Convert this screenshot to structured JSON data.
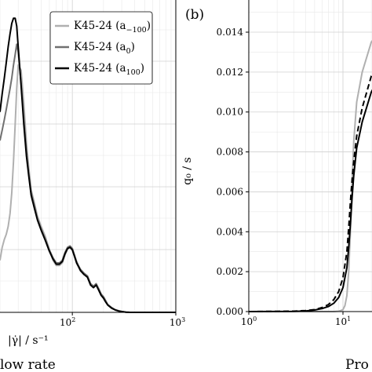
{
  "chart_data": [
    {
      "type": "line",
      "panel_label": "",
      "xscale": "log",
      "xlim": [
        20,
        1000
      ],
      "xticks": [
        {
          "value": 100,
          "base": "10",
          "exp": "2"
        },
        {
          "value": 1000,
          "base": "10",
          "exp": "3"
        }
      ],
      "xlabel": "|γ̇| / s⁻¹",
      "caption_fragment": "low rate",
      "grid": true,
      "legend": {
        "placement": "top-right",
        "entries": [
          {
            "label": "K45-24 (a",
            "sub": "−100",
            "close": ")",
            "color": "#b0b0b0"
          },
          {
            "label": "K45-24 (a",
            "sub": "0",
            "close": ")",
            "color": "#707070"
          },
          {
            "label": "K45-24 (a",
            "sub": "100",
            "close": ")",
            "color": "#000000"
          }
        ]
      },
      "series": [
        {
          "color": "#b0b0b0",
          "x": [
            20,
            21,
            22,
            23,
            24,
            25,
            26,
            27,
            28,
            29,
            30,
            32,
            34,
            36,
            38,
            40,
            43,
            46,
            50,
            55,
            60,
            65,
            70,
            75,
            80,
            85,
            90,
            95,
            100,
            105,
            110,
            115,
            120,
            130,
            140,
            150,
            160,
            170,
            180,
            190,
            200,
            210,
            220,
            240,
            260,
            280,
            300,
            330,
            360,
            400,
            450,
            500,
            600,
            700,
            800,
            1000
          ],
          "y": [
            0.2,
            0.25,
            0.28,
            0.3,
            0.33,
            0.38,
            0.46,
            0.58,
            0.72,
            0.86,
            0.95,
            0.93,
            0.8,
            0.65,
            0.55,
            0.47,
            0.42,
            0.37,
            0.33,
            0.29,
            0.24,
            0.2,
            0.18,
            0.18,
            0.19,
            0.22,
            0.245,
            0.25,
            0.24,
            0.22,
            0.19,
            0.175,
            0.16,
            0.15,
            0.14,
            0.11,
            0.1,
            0.11,
            0.09,
            0.07,
            0.06,
            0.045,
            0.03,
            0.018,
            0.01,
            0.006,
            0.003,
            0.001,
            0.0,
            0.0,
            0.0,
            0.0,
            0.0,
            0.0,
            0.0,
            0.0
          ]
        },
        {
          "color": "#707070",
          "x": [
            20,
            21,
            22,
            23,
            24,
            25,
            26,
            27,
            28,
            29,
            30,
            32,
            34,
            36,
            38,
            40,
            43,
            46,
            50,
            55,
            60,
            65,
            70,
            75,
            80,
            85,
            90,
            95,
            100,
            105,
            110,
            115,
            120,
            130,
            140,
            150,
            160,
            170,
            180,
            190,
            200,
            210,
            220,
            240,
            260,
            280,
            300,
            330,
            360,
            400,
            450,
            500,
            600,
            700,
            800,
            1000
          ],
          "y": [
            0.66,
            0.7,
            0.74,
            0.78,
            0.82,
            0.86,
            0.9,
            0.95,
            0.99,
            1.03,
            1.0,
            0.88,
            0.74,
            0.62,
            0.53,
            0.46,
            0.41,
            0.36,
            0.32,
            0.28,
            0.24,
            0.21,
            0.19,
            0.19,
            0.2,
            0.23,
            0.25,
            0.255,
            0.245,
            0.22,
            0.195,
            0.178,
            0.165,
            0.15,
            0.14,
            0.11,
            0.1,
            0.11,
            0.09,
            0.07,
            0.06,
            0.045,
            0.03,
            0.018,
            0.01,
            0.006,
            0.003,
            0.001,
            0.0,
            0.0,
            0.0,
            0.0,
            0.0,
            0.0,
            0.0,
            0.0
          ]
        },
        {
          "color": "#000000",
          "x": [
            20,
            21,
            22,
            23,
            24,
            25,
            26,
            27,
            28,
            29,
            30,
            32,
            34,
            36,
            38,
            40,
            43,
            46,
            50,
            55,
            60,
            65,
            70,
            75,
            80,
            85,
            90,
            95,
            100,
            105,
            110,
            115,
            120,
            130,
            140,
            150,
            160,
            170,
            180,
            190,
            200,
            210,
            220,
            240,
            260,
            280,
            300,
            330,
            360,
            400,
            450,
            500,
            600,
            700,
            800,
            1000
          ],
          "y": [
            0.77,
            0.84,
            0.9,
            0.96,
            1.02,
            1.07,
            1.11,
            1.13,
            1.13,
            1.1,
            1.02,
            0.87,
            0.72,
            0.6,
            0.52,
            0.45,
            0.4,
            0.355,
            0.315,
            0.275,
            0.235,
            0.205,
            0.185,
            0.185,
            0.195,
            0.225,
            0.245,
            0.25,
            0.24,
            0.215,
            0.19,
            0.175,
            0.16,
            0.145,
            0.135,
            0.105,
            0.095,
            0.105,
            0.085,
            0.065,
            0.055,
            0.04,
            0.028,
            0.016,
            0.009,
            0.005,
            0.003,
            0.001,
            0.0,
            0.0,
            0.0,
            0.0,
            0.0,
            0.0,
            0.0,
            0.0
          ]
        }
      ]
    },
    {
      "type": "line",
      "panel_label": "(b)",
      "xscale": "log",
      "xlim": [
        1,
        30
      ],
      "ylim": [
        0,
        0.0155
      ],
      "xticks": [
        {
          "value": 1,
          "base": "10",
          "exp": "0"
        },
        {
          "value": 10,
          "base": "10",
          "exp": "1"
        }
      ],
      "yticks": [
        {
          "value": 0.0,
          "label": "0.000"
        },
        {
          "value": 0.002,
          "label": "0.002"
        },
        {
          "value": 0.004,
          "label": "0.004"
        },
        {
          "value": 0.006,
          "label": "0.006"
        },
        {
          "value": 0.008,
          "label": "0.008"
        },
        {
          "value": 0.01,
          "label": "0.010"
        },
        {
          "value": 0.012,
          "label": "0.012"
        },
        {
          "value": 0.014,
          "label": "0.014"
        }
      ],
      "ylabel": "q₀ / s",
      "caption_fragment": "Pro",
      "grid": true,
      "series": [
        {
          "color": "#b0b0b0",
          "dash": "solid",
          "x": [
            1,
            5,
            8,
            9,
            9.5,
            10,
            10.5,
            11,
            11.5,
            12,
            12.5,
            13,
            14,
            16,
            20,
            30
          ],
          "y": [
            0,
            0,
            0,
            2e-05,
            5e-05,
            0.0001,
            0.0003,
            0.0008,
            0.002,
            0.004,
            0.0065,
            0.0085,
            0.0105,
            0.012,
            0.0135,
            0.0145
          ]
        },
        {
          "color": "#000000",
          "dash": "solid",
          "x": [
            1,
            3,
            4,
            5,
            6,
            7,
            8,
            9,
            10,
            11,
            11.5,
            12,
            12.5,
            13,
            14,
            16,
            20,
            30
          ],
          "y": [
            0,
            1e-05,
            3e-05,
            8e-05,
            0.00015,
            0.00025,
            0.00042,
            0.0007,
            0.0012,
            0.0022,
            0.0032,
            0.0044,
            0.0057,
            0.0068,
            0.0082,
            0.0095,
            0.011,
            0.0125
          ]
        },
        {
          "color": "#000000",
          "dash": "dashed",
          "x": [
            1,
            3,
            4,
            5,
            6,
            7,
            8,
            9,
            10,
            11,
            11.5,
            12,
            12.5,
            13,
            14,
            16,
            20,
            30
          ],
          "y": [
            0,
            2e-05,
            5e-05,
            0.0001,
            0.0002,
            0.00035,
            0.0006,
            0.001,
            0.0017,
            0.003,
            0.0042,
            0.0055,
            0.0066,
            0.0075,
            0.0088,
            0.0102,
            0.0118,
            0.013
          ]
        }
      ]
    }
  ]
}
